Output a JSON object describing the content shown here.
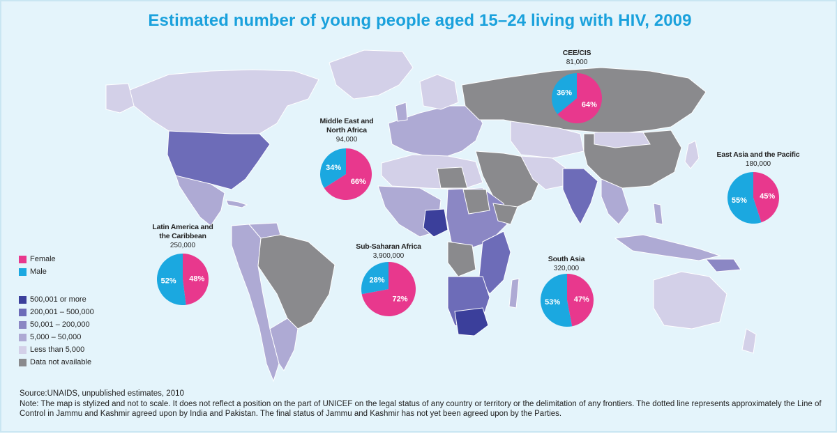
{
  "title": "Estimated number of young people aged 15–24 living with HIV, 2009",
  "colors": {
    "female": "#e8388d",
    "male": "#1ba8e0",
    "level_5": "#3b3f9b",
    "level_4": "#6d6cb8",
    "level_3": "#8b87c4",
    "level_2": "#aeaad4",
    "level_1": "#d3d0e8",
    "na": "#8a8a8d",
    "ocean": "#e4f4fb"
  },
  "pie_legend": [
    {
      "label": "Female",
      "color": "#e8388d"
    },
    {
      "label": "Male",
      "color": "#1ba8e0"
    }
  ],
  "scale_legend": [
    {
      "label": "500,001 or more",
      "color": "#3b3f9b"
    },
    {
      "label": "200,001 – 500,000",
      "color": "#6d6cb8"
    },
    {
      "label": "50,001 – 200,000",
      "color": "#8b87c4"
    },
    {
      "label": "5,000 – 50,000",
      "color": "#aeaad4"
    },
    {
      "label": "Less than 5,000",
      "color": "#d3d0e8"
    },
    {
      "label": "Data not available",
      "color": "#8a8a8d"
    }
  ],
  "regions": [
    {
      "name": "CEE/CIS",
      "total": "81,000",
      "female_pct": 64,
      "male_pct": 36,
      "female_label": "64%",
      "male_label": "36%"
    },
    {
      "name": "Middle East and North Africa",
      "name_line1": "Middle East and",
      "name_line2": "North Africa",
      "total": "94,000",
      "female_pct": 66,
      "male_pct": 34,
      "female_label": "66%",
      "male_label": "34%"
    },
    {
      "name": "East Asia and the Pacific",
      "total": "180,000",
      "female_pct": 45,
      "male_pct": 55,
      "female_label": "45%",
      "male_label": "55%"
    },
    {
      "name": "Latin America and the Caribbean",
      "name_line1": "Latin America and",
      "name_line2": "the Caribbean",
      "total": "250,000",
      "female_pct": 48,
      "male_pct": 52,
      "female_label": "48%",
      "male_label": "52%"
    },
    {
      "name": "Sub-Saharan Africa",
      "total": "3,900,000",
      "female_pct": 72,
      "male_pct": 28,
      "female_label": "72%",
      "male_label": "28%"
    },
    {
      "name": "South Asia",
      "total": "320,000",
      "female_pct": 47,
      "male_pct": 53,
      "female_label": "47%",
      "male_label": "53%"
    }
  ],
  "source": "Source:UNAIDS, unpublished estimates, 2010",
  "note": "Note: The map is stylized and not to scale. It does not reflect a position on the part of UNICEF on the legal status of any country or territory or the delimitation of any frontiers. The dotted line represents approximately the Line of Control in Jammu and Kashmir agreed upon by India and Pakistan. The final status of Jammu and Kashmir has not yet been agreed upon by the Parties."
}
